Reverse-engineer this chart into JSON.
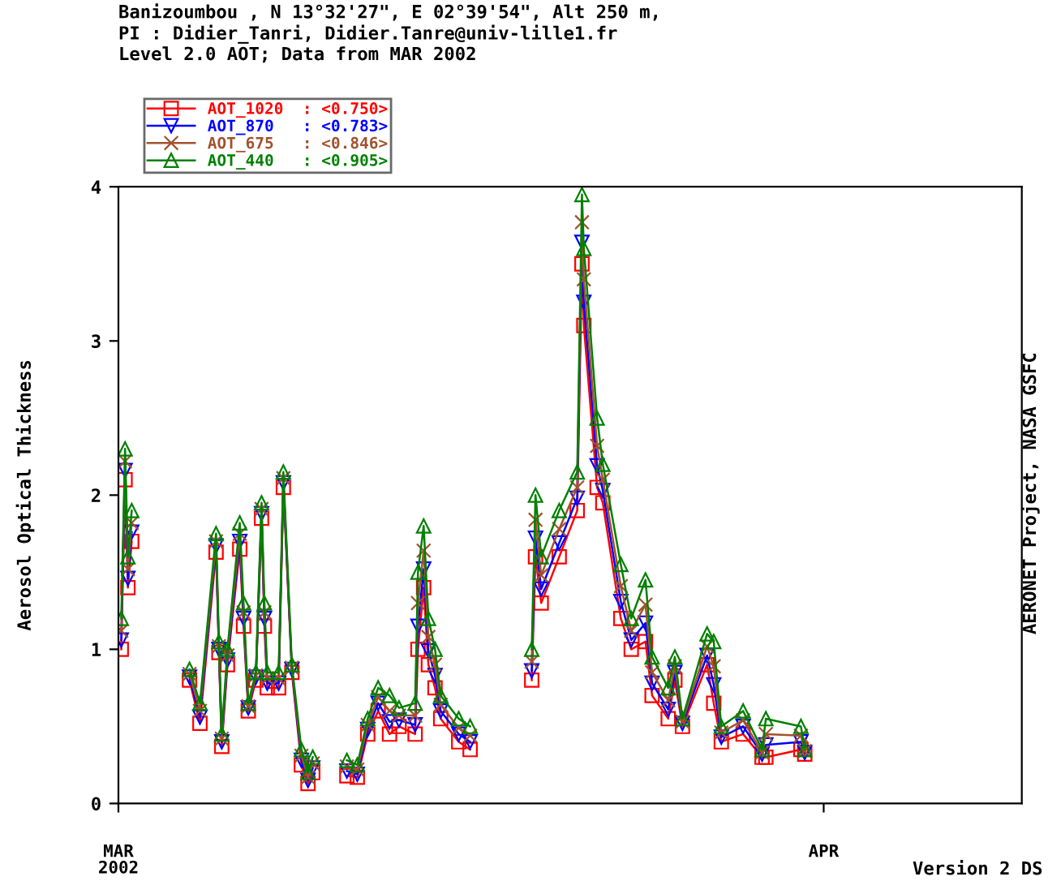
{
  "chart_data": {
    "type": "line",
    "title": "Banizoumbou , N 13°32'27\", E 02°39'54\", Alt 250 m,\nPI : Didier_Tanri, Didier.Tanre@univ-lille1.fr\nLevel 2.0 AOT; Data from MAR 2002",
    "ylabel": "Aerosol Optical Thickness",
    "annotations": [
      "AERONET Project, NASA GSFC",
      "Version 2 DS"
    ],
    "x": [
      "2002-03-01T03:00",
      "2002-03-01T07:00",
      "2002-03-01T10:00",
      "2002-03-01T14:00",
      "2002-03-03T00:00",
      "2002-03-04T03:00",
      "2002-03-04T14:00",
      "2002-03-05T07:00",
      "2002-03-05T10:00",
      "2002-03-05T13:00",
      "2002-03-05T19:00",
      "2002-03-06T08:00",
      "2002-03-06T12:00",
      "2002-03-06T17:00",
      "2002-03-07T01:00",
      "2002-03-07T07:00",
      "2002-03-07T10:00",
      "2002-03-07T13:00",
      "2002-03-08T01:00",
      "2002-03-08T06:00",
      "2002-03-08T15:00",
      "2002-03-09T01:00",
      "2002-03-09T08:00",
      "2002-03-09T13:00",
      "2002-03-10T00:00",
      "2002-03-11T01:00",
      "2002-03-11T12:00",
      "2002-03-11T23:00",
      "2002-03-12T10:00",
      "2002-03-12T22:00",
      "2002-03-13T08:00",
      "2002-03-14T01:00",
      "2002-03-14T04:00",
      "2002-03-14T10:00",
      "2002-03-14T15:00",
      "2002-03-14T22:00",
      "2002-03-15T04:00",
      "2002-03-15T23:00",
      "2002-03-16T11:00",
      "2002-03-17T12:00",
      "2002-03-19T04:00",
      "2002-03-19T08:00",
      "2002-03-19T14:00",
      "2002-03-20T09:00",
      "2002-03-21T04:00",
      "2002-03-21T09:00",
      "2002-03-21T11:00",
      "2002-03-22T01:00",
      "2002-03-22T07:00",
      "2002-03-23T02:00",
      "2002-03-23T13:00",
      "2002-03-24T04:00",
      "2002-03-24T11:00",
      "2002-03-25T04:00",
      "2002-03-25T11:00",
      "2002-03-25T19:00",
      "2002-03-26T21:00",
      "2002-03-27T04:00",
      "2002-03-27T12:00",
      "2002-03-28T11:00",
      "2002-03-29T07:00",
      "2002-03-29T11:00",
      "2002-03-31T00:00",
      "2002-03-31T04:00"
    ],
    "series": [
      {
        "name": "AOT_1020  : <0.750>",
        "color": "#ff0000",
        "marker": "square",
        "values": [
          1.0,
          2.1,
          1.4,
          1.7,
          null,
          0.8,
          0.52,
          1.63,
          0.98,
          0.37,
          0.9,
          1.65,
          1.15,
          0.6,
          0.8,
          1.85,
          1.15,
          0.75,
          0.75,
          2.05,
          0.85,
          0.25,
          0.13,
          0.2,
          null,
          0.18,
          0.17,
          0.45,
          0.6,
          0.45,
          0.5,
          0.45,
          1.0,
          1.4,
          0.9,
          0.75,
          0.55,
          0.4,
          0.35,
          null,
          0.8,
          1.6,
          1.3,
          1.6,
          1.9,
          3.5,
          3.1,
          2.05,
          1.95,
          1.2,
          1.0,
          1.05,
          0.7,
          0.55,
          0.8,
          0.5,
          0.9,
          0.65,
          0.4,
          0.45,
          0.3,
          0.3,
          0.35,
          0.32
        ]
      },
      {
        "name": "AOT_870   : <0.783>",
        "color": "#0000ff",
        "marker": "triangle_down",
        "values": [
          1.06,
          2.16,
          1.46,
          1.76,
          null,
          0.82,
          0.56,
          1.67,
          1.0,
          0.4,
          0.93,
          1.7,
          1.2,
          0.62,
          0.82,
          1.88,
          1.2,
          0.78,
          0.78,
          2.08,
          0.87,
          0.28,
          0.15,
          0.23,
          null,
          0.21,
          0.19,
          0.48,
          0.65,
          0.53,
          0.54,
          0.51,
          1.15,
          1.52,
          0.99,
          0.83,
          0.6,
          0.45,
          0.4,
          null,
          0.86,
          1.72,
          1.39,
          1.69,
          1.98,
          3.64,
          3.25,
          2.19,
          2.03,
          1.31,
          1.06,
          1.17,
          0.78,
          0.61,
          0.85,
          0.52,
          0.96,
          0.77,
          0.43,
          0.5,
          0.32,
          0.38,
          0.4,
          0.33
        ]
      },
      {
        "name": "AOT_675   : <0.846>",
        "color": "#a0522d",
        "marker": "cross",
        "values": [
          1.12,
          2.22,
          1.52,
          1.82,
          null,
          0.84,
          0.6,
          1.7,
          1.02,
          0.42,
          0.96,
          1.75,
          1.24,
          0.63,
          0.83,
          1.91,
          1.24,
          0.81,
          0.81,
          2.11,
          0.88,
          0.31,
          0.17,
          0.26,
          null,
          0.24,
          0.22,
          0.51,
          0.69,
          0.6,
          0.57,
          0.57,
          1.3,
          1.64,
          1.08,
          0.9,
          0.64,
          0.49,
          0.44,
          null,
          0.92,
          1.84,
          1.48,
          1.78,
          2.05,
          3.77,
          3.4,
          2.32,
          2.1,
          1.41,
          1.12,
          1.29,
          0.85,
          0.67,
          0.89,
          0.53,
          1.02,
          0.89,
          0.46,
          0.54,
          0.33,
          0.45,
          0.44,
          0.34
        ]
      },
      {
        "name": "AOT_440   : <0.905>",
        "color": "#008000",
        "marker": "triangle",
        "values": [
          1.2,
          2.3,
          1.6,
          1.9,
          null,
          0.87,
          0.65,
          1.75,
          1.05,
          0.45,
          1.0,
          1.82,
          1.3,
          0.65,
          0.85,
          1.95,
          1.3,
          0.85,
          0.85,
          2.15,
          0.9,
          0.35,
          0.2,
          0.3,
          null,
          0.28,
          0.25,
          0.55,
          0.75,
          0.7,
          0.62,
          0.65,
          1.5,
          1.8,
          1.2,
          1.0,
          0.7,
          0.55,
          0.5,
          null,
          1.0,
          2.0,
          1.6,
          1.9,
          2.15,
          3.95,
          3.6,
          2.5,
          2.2,
          1.55,
          1.2,
          1.45,
          0.95,
          0.75,
          0.95,
          0.55,
          1.1,
          1.05,
          0.5,
          0.6,
          0.35,
          0.55,
          0.5,
          0.35
        ]
      }
    ],
    "xlim": [
      "2002-03-01T00:00",
      "2002-04-09T17:00"
    ],
    "xticks": [
      {
        "value": "2002-03-01",
        "label": "MAR\n2002"
      },
      {
        "value": "2002-04-01",
        "label": "APR"
      }
    ],
    "ylim": [
      0,
      4
    ],
    "yticks": [
      0,
      1,
      2,
      3,
      4
    ],
    "grid": false,
    "legend": "top left",
    "line_style": "solid"
  }
}
